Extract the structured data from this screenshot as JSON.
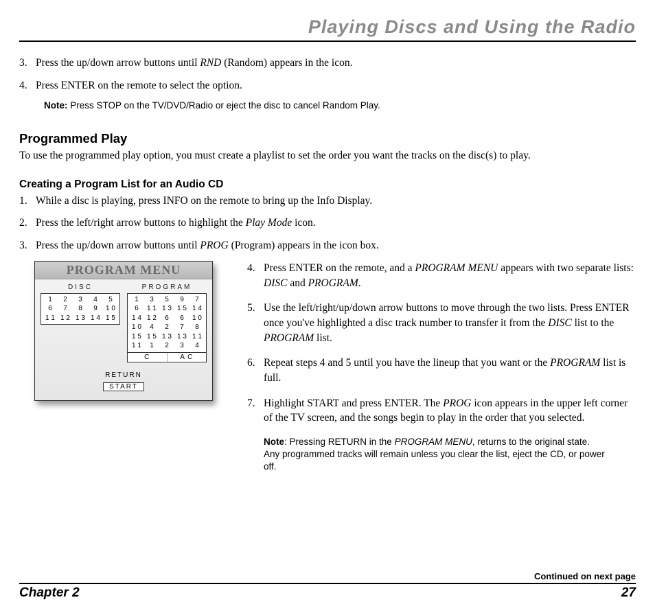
{
  "header": {
    "title": "Playing Discs and Using the Radio"
  },
  "top_steps": {
    "s3_num": "3.",
    "s3a": "Press the up/down arrow buttons until ",
    "s3_rnd": "RND",
    "s3b": " (Random) appears in the icon.",
    "s4_num": "4.",
    "s4": "Press ENTER on the remote to select the option."
  },
  "note1": {
    "label": "Note:",
    "text": "  Press STOP on the TV/DVD/Radio or eject the disc to cancel Random Play."
  },
  "section": {
    "h2": "Programmed Play",
    "para": "To use the programmed play option, you must create a playlist to set the order you want the tracks on the disc(s) to play.",
    "h3": "Creating a Program List for an Audio CD"
  },
  "create_steps": {
    "s1_num": "1.",
    "s1": "While a disc is playing, press INFO on the remote to bring up the Info Display.",
    "s2_num": "2.",
    "s2a": "Press the left/right arrow buttons to highlight the ",
    "s2_pm": "Play Mode",
    "s2b": " icon.",
    "s3_num": "3.",
    "s3a": "Press the up/down arrow buttons until ",
    "s3_prog": "PROG",
    "s3b": " (Program) appears in the icon box."
  },
  "figure": {
    "title": "PROGRAM MENU",
    "disc_label": "DISC",
    "prog_label": "PROGRAM",
    "disc_rows": [
      [
        "1",
        "2",
        "3",
        "4",
        "5"
      ],
      [
        "6",
        "7",
        "8",
        "9",
        "1 0"
      ],
      [
        "1 1",
        "1 2",
        "1 3",
        "1 4",
        "1 5"
      ]
    ],
    "prog_rows": [
      [
        "1",
        "3",
        "5",
        "9",
        "7"
      ],
      [
        "6",
        "1 1",
        "1 3",
        "1 5",
        "1 4"
      ],
      [
        "1 4",
        "1 2",
        "6",
        "6",
        "1 0"
      ],
      [
        "1 0",
        "4",
        "2",
        "7",
        "8"
      ],
      [
        "1 5",
        "1 5",
        "1 3",
        "1 3",
        "1 1"
      ],
      [
        "1 1",
        "1",
        "2",
        "3",
        "4"
      ]
    ],
    "ac_c": "C",
    "ac_ac": "A C",
    "return": "RETURN",
    "start": "START"
  },
  "right_steps": {
    "s4_num": "4.",
    "s4a": "Press ENTER on the remote, and a ",
    "s4_pm": "PROGRAM MENU",
    "s4b": " appears with two separate lists: ",
    "s4_disc": "DISC",
    "s4c": " and ",
    "s4_prog": "PROGRAM",
    "s4d": ".",
    "s5_num": "5.",
    "s5a": "Use the left/right/up/down arrow buttons to move through the two lists. Press ENTER once you've highlighted a disc track number to transfer it from the ",
    "s5_disc": "DISC",
    "s5b": " list to the ",
    "s5_prog": "PROGRAM",
    "s5c": " list.",
    "s6_num": "6.",
    "s6a": "Repeat steps 4 and 5 until you have the lineup that you want or the ",
    "s6_prog": "PROGRAM",
    "s6b": " list is full.",
    "s7_num": "7.",
    "s7a": "Highlight START and press ENTER. The ",
    "s7_prog": "PROG",
    "s7b": "  icon appears in the upper left corner of the TV screen, and the songs begin to play in the order that you selected."
  },
  "note2": {
    "label": "Note",
    "colon": ":  Pressing RETURN in the ",
    "pm": "PROGRAM MENU",
    "rest": ", returns to the original state. Any programmed tracks will remain unless you clear the list, eject the CD, or power off."
  },
  "footer": {
    "continued": "Continued on next page",
    "chapter": "Chapter 2",
    "page": "27"
  }
}
